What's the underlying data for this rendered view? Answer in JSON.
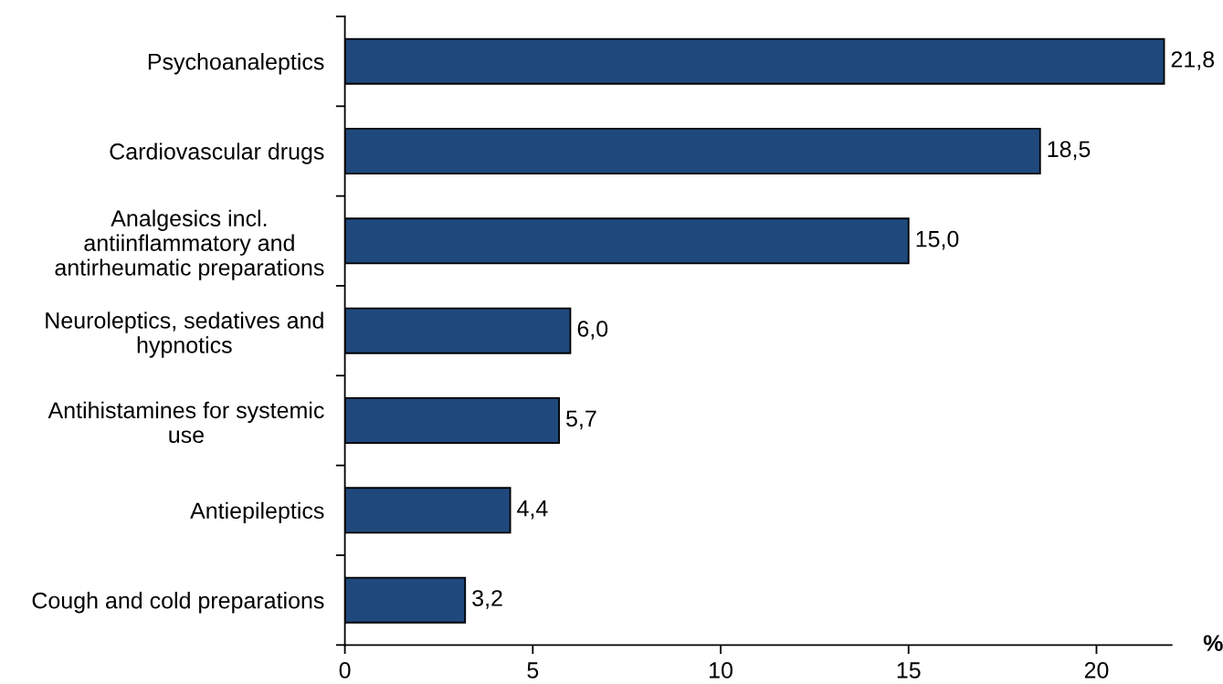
{
  "chart_data": {
    "type": "bar",
    "orientation": "horizontal",
    "categories": [
      "Psychoanaleptics",
      "Cardiovascular drugs",
      "Analgesics incl.\nantiinflammatory and\nantirheumatic preparations",
      "Neuroleptics, sedatives and\nhypnotics",
      "Antihistamines for systemic\nuse",
      "Antiepileptics",
      "Cough and cold preparations"
    ],
    "values": [
      21.8,
      18.5,
      15.0,
      6.0,
      5.7,
      4.4,
      3.2
    ],
    "value_labels": [
      "21,8",
      "18,5",
      "15,0",
      "6,0",
      "5,7",
      "4,4",
      "3,2"
    ],
    "color": "#1f497d",
    "xlim": [
      0,
      22
    ],
    "xticks": [
      0,
      5,
      10,
      15,
      20
    ],
    "xlabel": "%"
  }
}
